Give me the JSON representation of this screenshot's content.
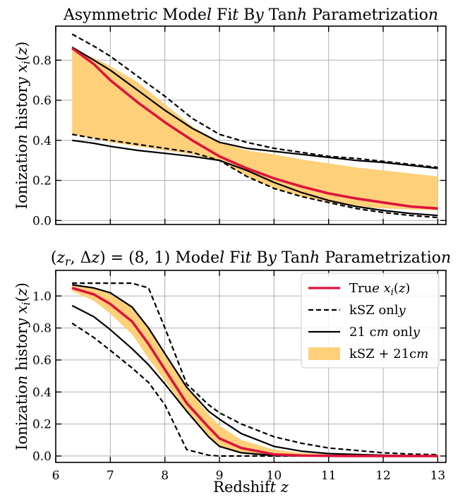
{
  "chart_data": [
    {
      "type": "line",
      "title": "Asymmetric Model Fit By Tanh Parametrization",
      "xlabel": "",
      "ylabel": "Ionization history x_i(z)",
      "xlim": [
        6,
        13.15
      ],
      "ylim": [
        -0.02,
        0.97
      ],
      "yticks": [
        0.0,
        0.2,
        0.4,
        0.6,
        0.8
      ],
      "ytick_labels": [
        "0.0",
        "0.2",
        "0.4",
        "0.6",
        "0.8"
      ],
      "xticks": [
        6,
        7,
        8,
        9,
        10,
        11,
        12,
        13
      ],
      "grid": true,
      "x": [
        6.3,
        6.7,
        7.0,
        7.5,
        8.0,
        8.5,
        9.0,
        9.5,
        10.0,
        10.5,
        11.0,
        11.5,
        12.0,
        12.5,
        13.0
      ],
      "series": [
        {
          "name": "True x_i(z)",
          "style": "red-solid",
          "color": "#dc143c",
          "values": [
            0.86,
            0.78,
            0.7,
            0.59,
            0.49,
            0.4,
            0.32,
            0.26,
            0.21,
            0.17,
            0.135,
            0.11,
            0.09,
            0.07,
            0.06
          ]
        },
        {
          "name": "kSZ only (upper)",
          "style": "black-dashed",
          "values": [
            0.93,
            0.87,
            0.82,
            0.72,
            0.62,
            0.51,
            0.43,
            0.39,
            0.36,
            0.34,
            0.32,
            0.31,
            0.295,
            0.28,
            0.265
          ]
        },
        {
          "name": "kSZ only (lower)",
          "style": "black-dashed",
          "values": [
            0.43,
            0.41,
            0.4,
            0.38,
            0.36,
            0.34,
            0.3,
            0.22,
            0.16,
            0.12,
            0.09,
            0.06,
            0.04,
            0.025,
            0.015
          ]
        },
        {
          "name": "21 cm only (upper)",
          "style": "black-solid",
          "values": [
            0.865,
            0.8,
            0.75,
            0.65,
            0.55,
            0.46,
            0.39,
            0.36,
            0.345,
            0.33,
            0.315,
            0.3,
            0.29,
            0.275,
            0.26
          ]
        },
        {
          "name": "21 cm only (lower)",
          "style": "black-solid",
          "values": [
            0.4,
            0.385,
            0.37,
            0.35,
            0.335,
            0.32,
            0.3,
            0.25,
            0.19,
            0.14,
            0.1,
            0.07,
            0.05,
            0.035,
            0.025
          ]
        }
      ],
      "band": {
        "name": "kSZ + 21cm",
        "color": "#ffd07a",
        "upper": [
          0.86,
          0.81,
          0.77,
          0.69,
          0.58,
          0.47,
          0.39,
          0.35,
          0.33,
          0.305,
          0.285,
          0.265,
          0.25,
          0.235,
          0.22
        ],
        "lower": [
          0.43,
          0.41,
          0.39,
          0.37,
          0.35,
          0.33,
          0.3,
          0.22,
          0.16,
          0.12,
          0.09,
          0.07,
          0.06,
          0.055,
          0.05
        ]
      }
    },
    {
      "type": "line",
      "title": "(z_r, Δz) = (8, 1) Model Fit By Tanh Parametrization",
      "xlabel": "Redshift z",
      "ylabel": "Ionization history x_i(z)",
      "xlim": [
        6,
        13.15
      ],
      "ylim": [
        -0.04,
        1.16
      ],
      "yticks": [
        0.0,
        0.2,
        0.4,
        0.6,
        0.8,
        1.0
      ],
      "ytick_labels": [
        "0.0",
        "0.2",
        "0.4",
        "0.6",
        "0.8",
        "1.0"
      ],
      "xticks": [
        6,
        7,
        8,
        9,
        10,
        11,
        12,
        13
      ],
      "xtick_labels": [
        "6",
        "7",
        "8",
        "9",
        "10",
        "11",
        "12",
        "13"
      ],
      "grid": true,
      "legend_position": "top-right",
      "legend": [
        {
          "label": "True x_i(z)",
          "style": "red-solid"
        },
        {
          "label": "kSZ only",
          "style": "black-dashed"
        },
        {
          "label": "21 cm only",
          "style": "black-solid"
        },
        {
          "label": "kSZ + 21cm",
          "style": "band"
        }
      ],
      "x": [
        6.3,
        6.7,
        7.0,
        7.4,
        7.7,
        8.0,
        8.4,
        8.8,
        9.0,
        9.4,
        10.0,
        10.5,
        11.0,
        11.5,
        12.0,
        12.5,
        13.0
      ],
      "series": [
        {
          "name": "True x_i(z)",
          "style": "red-solid",
          "color": "#dc143c",
          "values": [
            1.05,
            1.01,
            0.95,
            0.84,
            0.7,
            0.54,
            0.33,
            0.18,
            0.11,
            0.05,
            0.01,
            0.003,
            0.001,
            0.0,
            0.0,
            0.0,
            0.0
          ]
        },
        {
          "name": "kSZ only (upper)",
          "style": "black-dashed",
          "values": [
            1.08,
            1.08,
            1.08,
            1.08,
            1.05,
            0.8,
            0.45,
            0.32,
            0.27,
            0.2,
            0.12,
            0.08,
            0.05,
            0.035,
            0.02,
            0.012,
            0.008
          ]
        },
        {
          "name": "kSZ only (lower)",
          "style": "black-dashed",
          "values": [
            0.83,
            0.74,
            0.66,
            0.55,
            0.46,
            0.32,
            0.04,
            0.005,
            0.0,
            0.0,
            0.0,
            0.0,
            0.0,
            0.0,
            0.0,
            0.0,
            0.0
          ]
        },
        {
          "name": "21 cm only (upper)",
          "style": "black-solid",
          "values": [
            1.07,
            1.05,
            1.02,
            0.93,
            0.8,
            0.64,
            0.43,
            0.28,
            0.23,
            0.14,
            0.06,
            0.03,
            0.015,
            0.01,
            0.005,
            0.002,
            0.001
          ]
        },
        {
          "name": "21 cm only (lower)",
          "style": "black-solid",
          "values": [
            0.94,
            0.87,
            0.79,
            0.67,
            0.57,
            0.45,
            0.28,
            0.12,
            0.06,
            0.02,
            0.003,
            0.0,
            0.0,
            0.0,
            0.0,
            0.0,
            0.0
          ]
        }
      ],
      "band": {
        "name": "kSZ + 21cm",
        "color": "#ffd07a",
        "upper": [
          1.07,
          1.05,
          1.02,
          0.93,
          0.8,
          0.64,
          0.43,
          0.26,
          0.19,
          0.1,
          0.04,
          0.02,
          0.01,
          0.005,
          0.003,
          0.001,
          0.0
        ],
        "lower": [
          1.03,
          0.97,
          0.89,
          0.76,
          0.61,
          0.47,
          0.28,
          0.12,
          0.06,
          0.02,
          0.003,
          0.0,
          0.0,
          0.0,
          0.0,
          0.0,
          0.0
        ]
      }
    }
  ]
}
